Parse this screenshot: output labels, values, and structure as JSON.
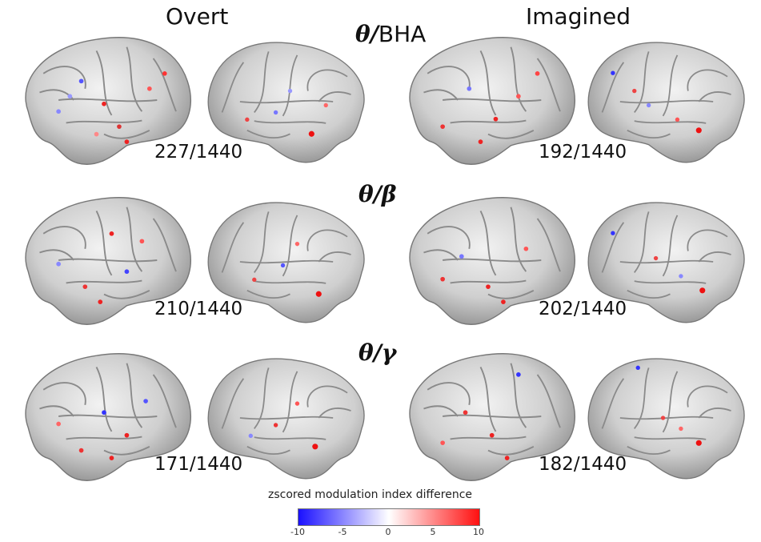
{
  "columns": [
    "Overt",
    "Imagined"
  ],
  "rows": [
    {
      "ratio": "θ/",
      "denom": "BHA",
      "denom_italic": false,
      "overt_count": "227/1440",
      "imagined_count": "192/1440"
    },
    {
      "ratio": "θ/",
      "denom": "β",
      "denom_italic": true,
      "overt_count": "210/1440",
      "imagined_count": "202/1440"
    },
    {
      "ratio": "θ/",
      "denom": "γ",
      "denom_italic": true,
      "overt_count": "171/1440",
      "imagined_count": "182/1440"
    }
  ],
  "colorbar": {
    "title": "zscored modulation index difference",
    "ticks": [
      "-10",
      "-5",
      "0",
      "5",
      "10"
    ],
    "colors": {
      "min": "#1a10ff",
      "mid": "#ffffff",
      "max": "#ff1010"
    }
  }
}
